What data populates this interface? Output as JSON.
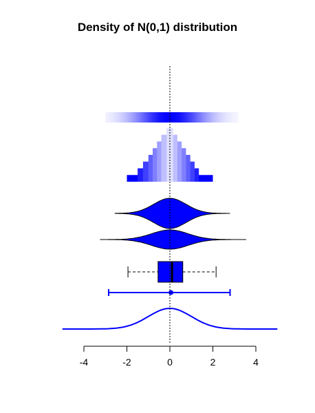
{
  "chart_data": {
    "type": "density",
    "title": "Density of N(0,1) distribution",
    "xlabel": "",
    "ylabel": "",
    "xlim": [
      -4,
      4
    ],
    "x_ticks": [
      -4,
      -2,
      0,
      2,
      4
    ],
    "x_tick_labels": [
      "-4",
      "-2",
      "0",
      "2",
      "4"
    ],
    "reference_line_x": 0,
    "colors": {
      "fill": "#0000ff",
      "line": "#0000ff",
      "outline": "#000000",
      "reference": "#000000"
    },
    "summary": {
      "min": -1.95,
      "q1": -0.55,
      "median": 0.1,
      "q3": 0.6,
      "max": 2.15,
      "mean": 0.05,
      "ci_low": -2.85,
      "ci_high": 2.8
    },
    "hdr_levels": [
      {
        "low": -2.0,
        "high": 2.0
      },
      {
        "low": -1.5,
        "high": 1.35
      },
      {
        "low": -1.25,
        "high": 1.15
      },
      {
        "low": -1.0,
        "high": 0.95
      },
      {
        "low": -0.8,
        "high": 0.75
      },
      {
        "low": -0.6,
        "high": 0.55
      },
      {
        "low": -0.4,
        "high": 0.35
      },
      {
        "low": -0.15,
        "high": 0.15
      }
    ],
    "gradient_range": [
      -3.0,
      3.2
    ],
    "violins": [
      {
        "range": [
          -2.55,
          2.8
        ],
        "sd": 0.75
      },
      {
        "range": [
          -3.25,
          3.55
        ],
        "sd": 0.85
      }
    ],
    "density_curve": {
      "range": [
        -5.0,
        5.0
      ],
      "mean": 0,
      "sd": 1
    }
  }
}
